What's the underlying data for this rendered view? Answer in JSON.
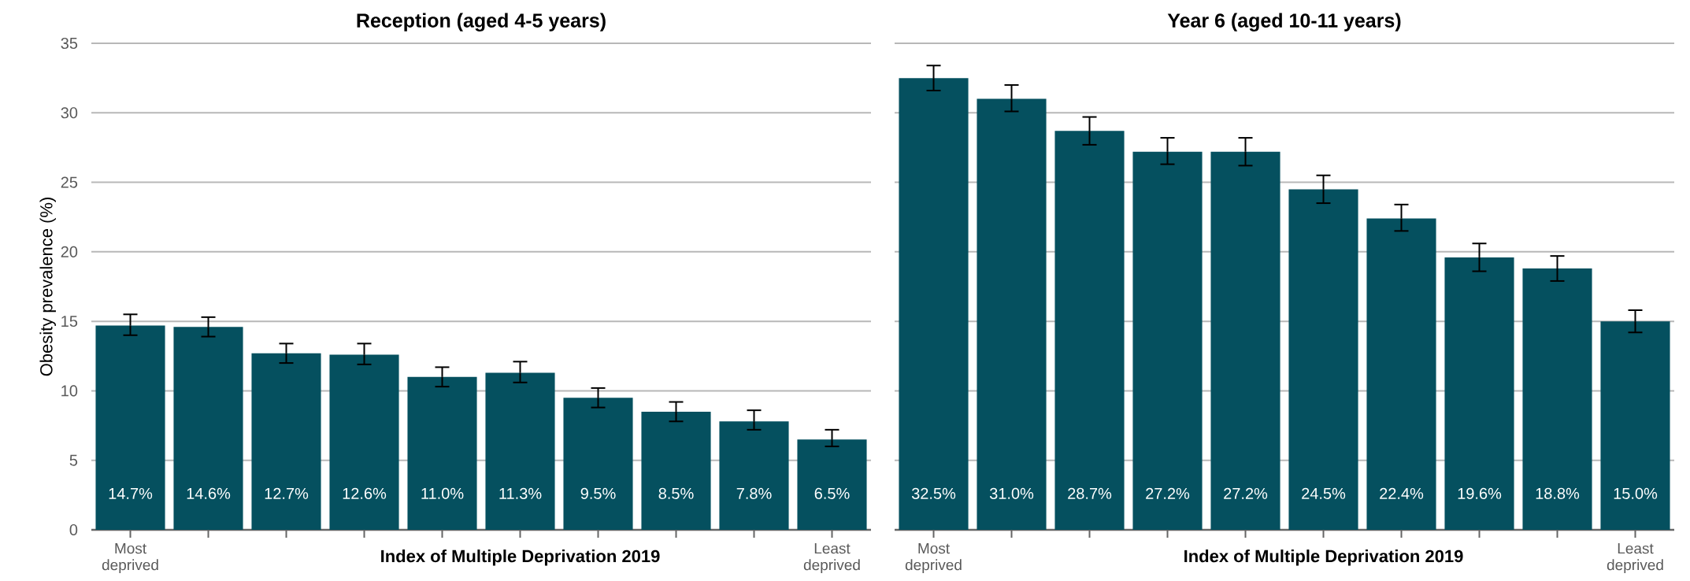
{
  "chart_data": [
    {
      "type": "bar",
      "title": "Reception (aged 4-5 years)",
      "xlabel": "Index of Multiple Deprivation 2019",
      "ylabel": "Obesity prevalence (%)",
      "categories": [
        "Most deprived",
        null,
        null,
        null,
        null,
        null,
        null,
        null,
        null,
        "Least deprived"
      ],
      "values": [
        14.7,
        14.6,
        12.7,
        12.6,
        11.0,
        11.3,
        9.5,
        8.5,
        7.8,
        6.5
      ],
      "errors": [
        [
          14.0,
          15.5
        ],
        [
          13.9,
          15.3
        ],
        [
          12.0,
          13.4
        ],
        [
          11.9,
          13.4
        ],
        [
          10.3,
          11.7
        ],
        [
          10.6,
          12.1
        ],
        [
          8.8,
          10.2
        ],
        [
          7.8,
          9.2
        ],
        [
          7.2,
          8.6
        ],
        [
          6.0,
          7.2
        ]
      ],
      "value_labels": [
        "14.7%",
        "14.6%",
        "12.7%",
        "12.6%",
        "11.0%",
        "11.3%",
        "9.5%",
        "8.5%",
        "7.8%",
        "6.5%"
      ],
      "color": "#05505f",
      "ylim": [
        0,
        35
      ],
      "yticks": [
        0,
        5,
        10,
        15,
        20,
        25,
        30,
        35
      ],
      "grid": "y"
    },
    {
      "type": "bar",
      "title": "Year 6 (aged 10-11 years)",
      "xlabel": "Index of Multiple Deprivation 2019",
      "categories": [
        "Most deprived",
        null,
        null,
        null,
        null,
        null,
        null,
        null,
        null,
        "Least deprived"
      ],
      "values": [
        32.5,
        31.0,
        28.7,
        27.2,
        27.2,
        24.5,
        22.4,
        19.6,
        18.8,
        15.0
      ],
      "errors": [
        [
          31.6,
          33.4
        ],
        [
          30.1,
          32.0
        ],
        [
          27.7,
          29.7
        ],
        [
          26.3,
          28.2
        ],
        [
          26.2,
          28.2
        ],
        [
          23.5,
          25.5
        ],
        [
          21.5,
          23.4
        ],
        [
          18.6,
          20.6
        ],
        [
          17.9,
          19.7
        ],
        [
          14.2,
          15.8
        ]
      ],
      "value_labels": [
        "32.5%",
        "31.0%",
        "28.7%",
        "27.2%",
        "27.2%",
        "24.5%",
        "22.4%",
        "19.6%",
        "18.8%",
        "15.0%"
      ],
      "color": "#05505f",
      "ylim": [
        0,
        35
      ],
      "yticks": [
        0,
        5,
        10,
        15,
        20,
        25,
        30,
        35
      ],
      "grid": "y",
      "tick_labels": "x"
    }
  ]
}
